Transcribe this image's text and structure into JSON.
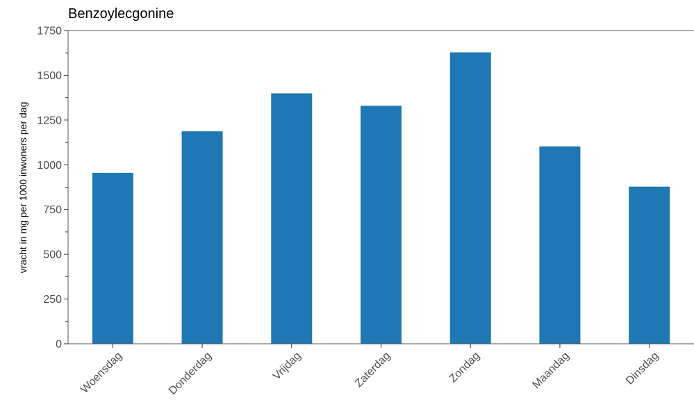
{
  "chart_data": {
    "type": "bar",
    "title": "Benzoylecgonine",
    "xlabel": "",
    "ylabel": "vracht in mg per 1000 inwoners per dag",
    "categories": [
      "Woensdag",
      "Donderdag",
      "Vrijdag",
      "Zaterdag",
      "Zondag",
      "Maandag",
      "Dinsdag"
    ],
    "values": [
      955,
      1187,
      1399,
      1330,
      1628,
      1103,
      878
    ],
    "ylim": [
      0,
      1750
    ],
    "yticks": [
      0,
      250,
      500,
      750,
      1000,
      1250,
      1500,
      1750
    ],
    "ytick_labels": [
      "0",
      "250",
      "500",
      "750",
      "1000",
      "1250",
      "1500",
      "1750"
    ],
    "grid": false,
    "legend": false,
    "bar_color": "#1f77b4"
  }
}
